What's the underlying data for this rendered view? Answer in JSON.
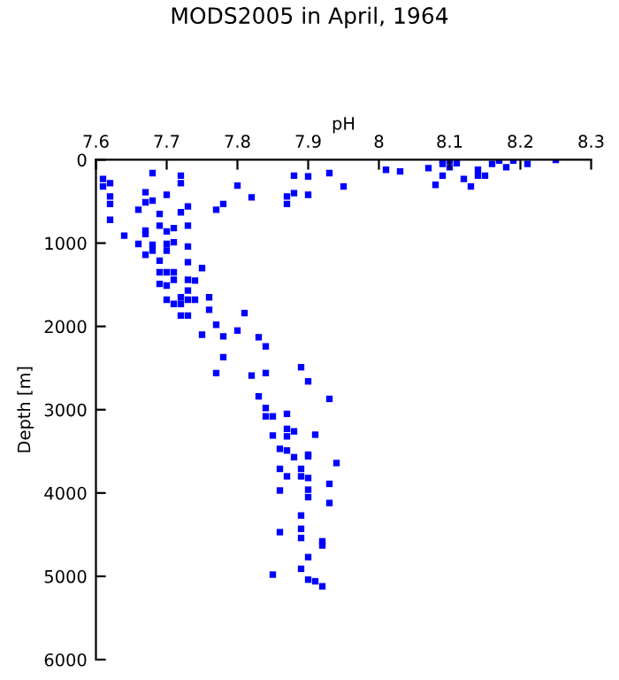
{
  "chart_data": {
    "type": "scatter",
    "title": "MODS2005 in April, 1964",
    "xlabel": "pH",
    "ylabel": "Depth [m]",
    "xlim": [
      7.6,
      8.3
    ],
    "xticks": [
      7.6,
      7.7,
      7.8,
      7.9,
      8,
      8.1,
      8.2,
      8.3
    ],
    "ylim": [
      6000,
      0
    ],
    "yticks": [
      0,
      1000,
      2000,
      3000,
      4000,
      5000,
      6000
    ],
    "grid": false,
    "marker": "square",
    "legend": false,
    "series": [
      {
        "color": "#0000ff",
        "x": [
          7.61,
          7.61,
          7.62,
          7.62,
          7.62,
          7.62,
          7.64,
          7.66,
          7.66,
          7.67,
          7.67,
          7.67,
          7.67,
          7.67,
          7.68,
          7.68,
          7.68,
          7.68,
          7.69,
          7.69,
          7.69,
          7.7,
          7.7,
          7.7,
          7.7,
          7.71,
          7.71,
          7.72,
          7.72,
          7.72,
          7.73,
          7.73,
          7.73,
          7.73,
          7.77,
          7.78,
          7.8,
          7.82,
          7.87,
          7.87,
          7.88,
          7.88,
          7.9,
          7.9,
          7.93,
          7.95,
          8.01,
          8.03,
          8.07,
          8.08,
          8.09,
          8.09,
          8.09,
          8.1,
          8.1,
          8.11,
          8.12,
          8.13,
          8.14,
          8.14,
          8.15,
          8.16,
          8.17,
          8.18,
          8.19,
          8.21,
          8.25,
          7.69,
          7.7,
          7.71,
          7.69,
          7.7,
          7.71,
          7.73,
          7.73,
          7.74,
          7.75,
          7.7,
          7.71,
          7.72,
          7.72,
          7.73,
          7.74,
          7.72,
          7.73,
          7.76,
          7.76,
          7.77,
          7.75,
          7.78,
          7.8,
          7.81,
          7.83,
          7.84,
          7.78,
          7.77,
          7.82,
          7.84,
          7.89,
          7.9,
          7.83,
          7.84,
          7.84,
          7.85,
          7.87,
          7.93,
          7.87,
          7.88,
          7.85,
          7.87,
          7.91,
          7.86,
          7.87,
          7.9,
          7.88,
          7.9,
          7.94,
          7.86,
          7.89,
          7.87,
          7.89,
          7.9,
          7.93,
          7.86,
          7.9,
          7.9,
          7.93,
          7.89,
          7.86,
          7.89,
          7.89,
          7.92,
          7.92,
          7.9,
          7.89,
          7.85,
          7.9,
          7.91,
          7.92
        ],
        "values": [
          230,
          320,
          280,
          440,
          530,
          720,
          910,
          600,
          1010,
          390,
          510,
          850,
          890,
          1140,
          160,
          490,
          1020,
          1090,
          650,
          790,
          1210,
          420,
          860,
          1010,
          1090,
          820,
          990,
          190,
          280,
          630,
          560,
          790,
          1040,
          1230,
          600,
          530,
          310,
          450,
          440,
          530,
          190,
          400,
          200,
          420,
          160,
          320,
          120,
          140,
          100,
          300,
          10,
          50,
          190,
          10,
          90,
          40,
          230,
          320,
          120,
          190,
          190,
          50,
          10,
          90,
          10,
          50,
          0,
          1350,
          1350,
          1350,
          1490,
          1510,
          1440,
          1440,
          1570,
          1450,
          1300,
          1680,
          1730,
          1730,
          1650,
          1680,
          1680,
          1870,
          1870,
          1650,
          1800,
          1980,
          2100,
          2120,
          2050,
          1840,
          2130,
          2240,
          2370,
          2560,
          2590,
          2560,
          2490,
          2660,
          2840,
          2980,
          3080,
          3080,
          3050,
          2870,
          3230,
          3260,
          3310,
          3320,
          3300,
          3470,
          3490,
          3540,
          3570,
          3560,
          3640,
          3710,
          3710,
          3800,
          3800,
          3820,
          3890,
          3970,
          3960,
          4050,
          4120,
          4270,
          4470,
          4430,
          4540,
          4580,
          4630,
          4770,
          4910,
          4980,
          5040,
          5060,
          5120
        ]
      }
    ]
  }
}
